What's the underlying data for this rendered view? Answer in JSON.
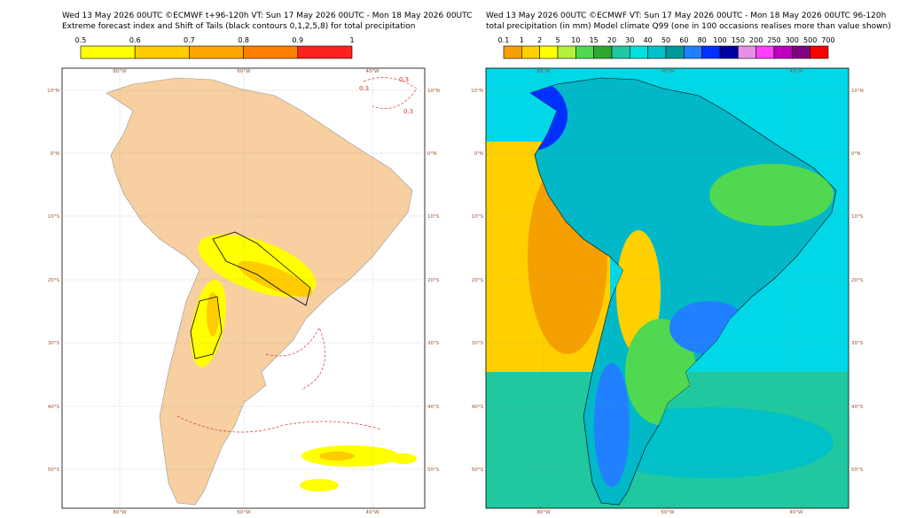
{
  "left": {
    "title": [
      "Wed 13 May 2026 00UTC ©ECMWF t+96-120h  VT: Sun 17 May 2026 00UTC - Mon 18 May 2026 00UTC",
      "Extreme forecast index and Shift of Tails (black contours 0,1,2,5,8) for total precipitation"
    ],
    "colorbar": {
      "labels": [
        0.5,
        0.6,
        0.7,
        0.8,
        0.9,
        1
      ],
      "colors": [
        "#ffff00",
        "#ffcc00",
        "#ffa500",
        "#ff7f00",
        "#ff2020"
      ]
    },
    "lon_labels": [
      "80°W",
      "60°W",
      "40°W"
    ],
    "lat_labels": [
      "10°N",
      "0°N",
      "10°S",
      "20°S",
      "30°S",
      "40°S",
      "50°S"
    ],
    "contour_labels": [
      "0.3",
      "0.3",
      "0.3"
    ]
  },
  "right": {
    "title": [
      "Wed 13 May 2026 00UTC ©ECMWF VT: Sun 17 May 2026 00UTC - Mon 18 May 2026 00UTC   96-120h",
      "total precipitation (in mm)  Model climate Q99 (one in 100 occasions realises more than value shown)"
    ],
    "colorbar": {
      "labels": [
        0.1,
        1,
        2,
        5,
        10,
        15,
        20,
        30,
        40,
        50,
        60,
        80,
        100,
        150,
        200,
        250,
        300,
        500,
        700
      ],
      "colors": [
        "#f5a000",
        "#ffd000",
        "#ffff00",
        "#b4f03c",
        "#50d850",
        "#30a830",
        "#20c8a0",
        "#00e0e0",
        "#00c0c8",
        "#009898",
        "#2080ff",
        "#0030ff",
        "#0000a0",
        "#e890e8",
        "#ff40ff",
        "#c000c0",
        "#800080",
        "#ff0000"
      ]
    },
    "lon_labels": [
      "80°W",
      "60°W",
      "40°W"
    ],
    "lat_labels": [
      "10°N",
      "0°N",
      "10°S",
      "20°S",
      "30°S",
      "40°S",
      "50°S"
    ]
  }
}
